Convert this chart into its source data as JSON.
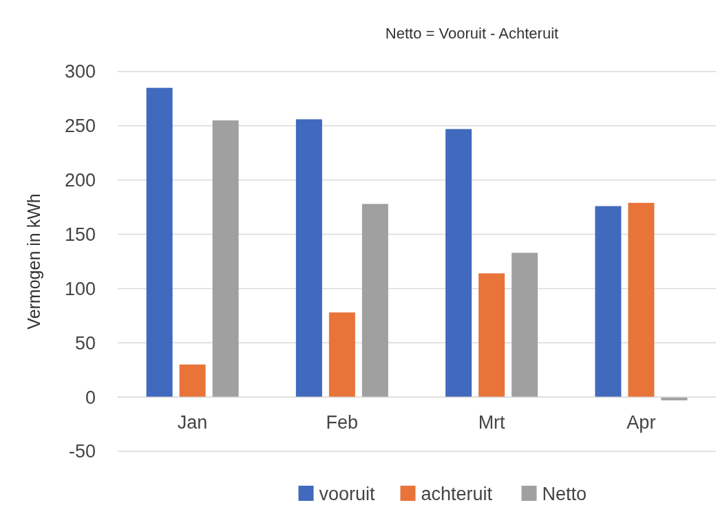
{
  "chart_data": {
    "type": "bar",
    "title": "Netto = Vooruit - Achteruit",
    "ylabel": "Vermogen in kWh",
    "categories": [
      "Jan",
      "Feb",
      "Mrt",
      "Apr"
    ],
    "series": [
      {
        "name": "vooruit",
        "color": "#4169bd",
        "values": [
          285,
          256,
          247,
          176
        ]
      },
      {
        "name": "achteruit",
        "color": "#e8743a",
        "values": [
          30,
          78,
          114,
          179
        ]
      },
      {
        "name": "Netto",
        "color": "#a0a0a0",
        "values": [
          255,
          178,
          133,
          -3
        ]
      }
    ],
    "ylim": [
      -50,
      300
    ],
    "yticks": [
      -50,
      0,
      50,
      100,
      150,
      200,
      250,
      300
    ],
    "grid": "y",
    "legend": "bottom"
  }
}
